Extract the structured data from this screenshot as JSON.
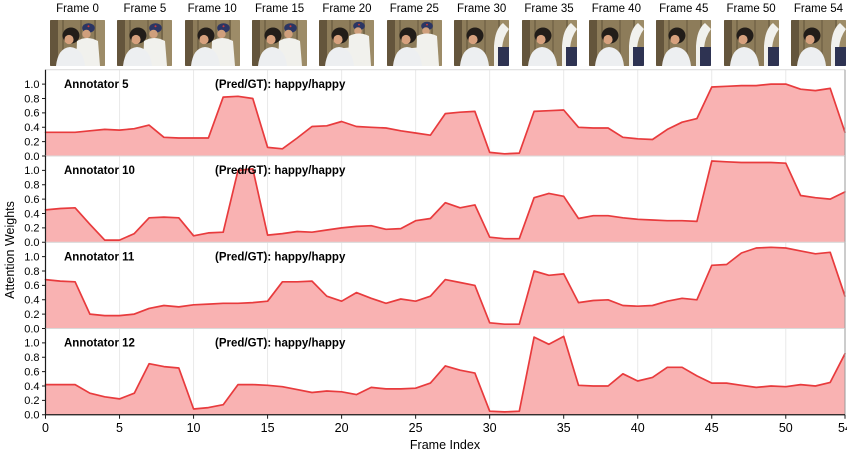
{
  "thumbnails": {
    "labels": [
      "Frame 0",
      "Frame 5",
      "Frame 10",
      "Frame 15",
      "Frame 20",
      "Frame 25",
      "Frame 30",
      "Frame 35",
      "Frame 40",
      "Frame 45",
      "Frame 50",
      "Frame 54"
    ],
    "poses": [
      "hug",
      "hug",
      "hug",
      "hug",
      "stand",
      "stand",
      "arm",
      "arm",
      "arm",
      "arm",
      "arm",
      "arm"
    ]
  },
  "chart_data": {
    "type": "area",
    "x_label": "Frame Index",
    "y_label": "Attention Weights",
    "x_ticks": [
      0,
      5,
      10,
      15,
      20,
      25,
      30,
      35,
      40,
      45,
      50,
      54
    ],
    "y_ticks": [
      0.0,
      0.2,
      0.4,
      0.6,
      0.8,
      1.0
    ],
    "xlim": [
      0,
      54
    ],
    "ylim": [
      0,
      1.2
    ],
    "grid": "vertical-only",
    "legend": "none",
    "series": [
      {
        "name": "Annotator 5",
        "pred_gt": "(Pred/GT): happy/happy",
        "values": [
          0.33,
          0.33,
          0.33,
          0.35,
          0.37,
          0.36,
          0.38,
          0.43,
          0.26,
          0.25,
          0.25,
          0.25,
          0.82,
          0.83,
          0.8,
          0.12,
          0.1,
          0.25,
          0.41,
          0.42,
          0.48,
          0.41,
          0.4,
          0.39,
          0.35,
          0.32,
          0.29,
          0.59,
          0.61,
          0.62,
          0.05,
          0.03,
          0.04,
          0.62,
          0.63,
          0.64,
          0.4,
          0.39,
          0.39,
          0.26,
          0.24,
          0.23,
          0.37,
          0.47,
          0.52,
          0.96,
          0.97,
          0.98,
          0.98,
          1.0,
          1.0,
          0.93,
          0.91,
          0.94,
          0.33
        ]
      },
      {
        "name": "Annotator 10",
        "pred_gt": "(Pred/GT): happy/happy",
        "values": [
          0.45,
          0.47,
          0.48,
          0.25,
          0.03,
          0.03,
          0.12,
          0.34,
          0.35,
          0.34,
          0.09,
          0.13,
          0.14,
          1.0,
          1.02,
          0.1,
          0.12,
          0.15,
          0.14,
          0.17,
          0.2,
          0.22,
          0.23,
          0.18,
          0.19,
          0.3,
          0.33,
          0.55,
          0.48,
          0.52,
          0.07,
          0.05,
          0.05,
          0.62,
          0.68,
          0.64,
          0.33,
          0.37,
          0.37,
          0.34,
          0.32,
          0.31,
          0.3,
          0.3,
          0.29,
          1.13,
          1.12,
          1.11,
          1.11,
          1.11,
          1.1,
          0.65,
          0.62,
          0.6,
          0.7
        ]
      },
      {
        "name": "Annotator 11",
        "pred_gt": "(Pred/GT): happy/happy",
        "values": [
          0.68,
          0.66,
          0.65,
          0.2,
          0.18,
          0.18,
          0.2,
          0.28,
          0.32,
          0.3,
          0.33,
          0.34,
          0.35,
          0.35,
          0.36,
          0.38,
          0.65,
          0.65,
          0.66,
          0.45,
          0.38,
          0.5,
          0.42,
          0.35,
          0.41,
          0.38,
          0.45,
          0.68,
          0.64,
          0.6,
          0.08,
          0.06,
          0.06,
          0.8,
          0.74,
          0.76,
          0.36,
          0.39,
          0.4,
          0.32,
          0.31,
          0.32,
          0.38,
          0.42,
          0.4,
          0.88,
          0.89,
          1.05,
          1.12,
          1.13,
          1.12,
          1.08,
          1.04,
          1.06,
          0.45
        ]
      },
      {
        "name": "Annotator 12",
        "pred_gt": "(Pred/GT): happy/happy",
        "values": [
          0.42,
          0.42,
          0.42,
          0.3,
          0.25,
          0.22,
          0.3,
          0.71,
          0.67,
          0.65,
          0.08,
          0.1,
          0.14,
          0.42,
          0.42,
          0.41,
          0.39,
          0.35,
          0.31,
          0.33,
          0.32,
          0.28,
          0.38,
          0.36,
          0.36,
          0.37,
          0.44,
          0.68,
          0.62,
          0.58,
          0.05,
          0.04,
          0.05,
          1.08,
          0.98,
          1.09,
          0.41,
          0.4,
          0.4,
          0.57,
          0.47,
          0.52,
          0.66,
          0.66,
          0.54,
          0.44,
          0.44,
          0.41,
          0.38,
          0.4,
          0.39,
          0.42,
          0.4,
          0.45,
          0.85
        ]
      }
    ]
  },
  "colors": {
    "line": "#e83b3d",
    "fill": "#f9b2b2",
    "grid": "#e9e9e9",
    "spine": "#1a1a1a",
    "separator": "#d9d9d9",
    "right_spine": "#9a9a9a",
    "text": "#000000",
    "thumb_bg": "#8d7c5a",
    "thumb_bg_dark": "#64553c",
    "thumb_bg_light": "#9d8c68",
    "hair": "#221d19",
    "skin": "#d7a17e",
    "skin2": "#cf9f7c",
    "shirt": "#edeff1",
    "uniform": "#f1f1ed",
    "cap": "#2b3563",
    "cap_star": "#d03a3a",
    "navy": "#2e3352"
  }
}
